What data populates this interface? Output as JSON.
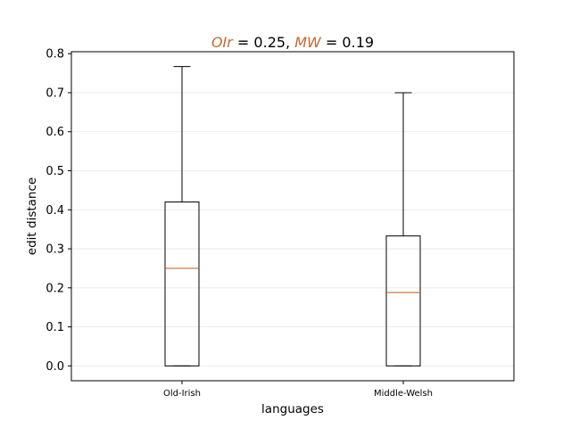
{
  "chart_data": {
    "type": "box",
    "title": {
      "parts": [
        {
          "text": "OIr",
          "italic": true,
          "colored": true
        },
        {
          "text": " = 0.25",
          "italic": false,
          "colored": false
        },
        {
          "text": ", ",
          "italic": false,
          "colored": false
        },
        {
          "text": "MW",
          "italic": true,
          "colored": true
        },
        {
          "text": " = 0.19",
          "italic": false,
          "colored": false
        }
      ]
    },
    "xlabel": "languages",
    "ylabel": "edit distance",
    "categories": [
      "Old-Irish",
      "Middle-Welsh"
    ],
    "boxes": [
      {
        "label": "Old-Irish",
        "whisker_low": 0.0,
        "q1": 0.0,
        "median": 0.25,
        "q3": 0.42,
        "whisker_high": 0.767
      },
      {
        "label": "Middle-Welsh",
        "whisker_low": 0.0,
        "q1": 0.0,
        "median": 0.188,
        "q3": 0.333,
        "whisker_high": 0.7
      }
    ],
    "ylim": [
      -0.038,
      0.805
    ],
    "yticks": [
      "0.0",
      "0.1",
      "0.2",
      "0.3",
      "0.4",
      "0.5",
      "0.6",
      "0.7",
      "0.8"
    ],
    "grid": "horizontal",
    "colors": {
      "box": "#000000",
      "median": "#c8692c",
      "title_accent": "#c8692c",
      "grid": "#e6e6e6"
    }
  }
}
